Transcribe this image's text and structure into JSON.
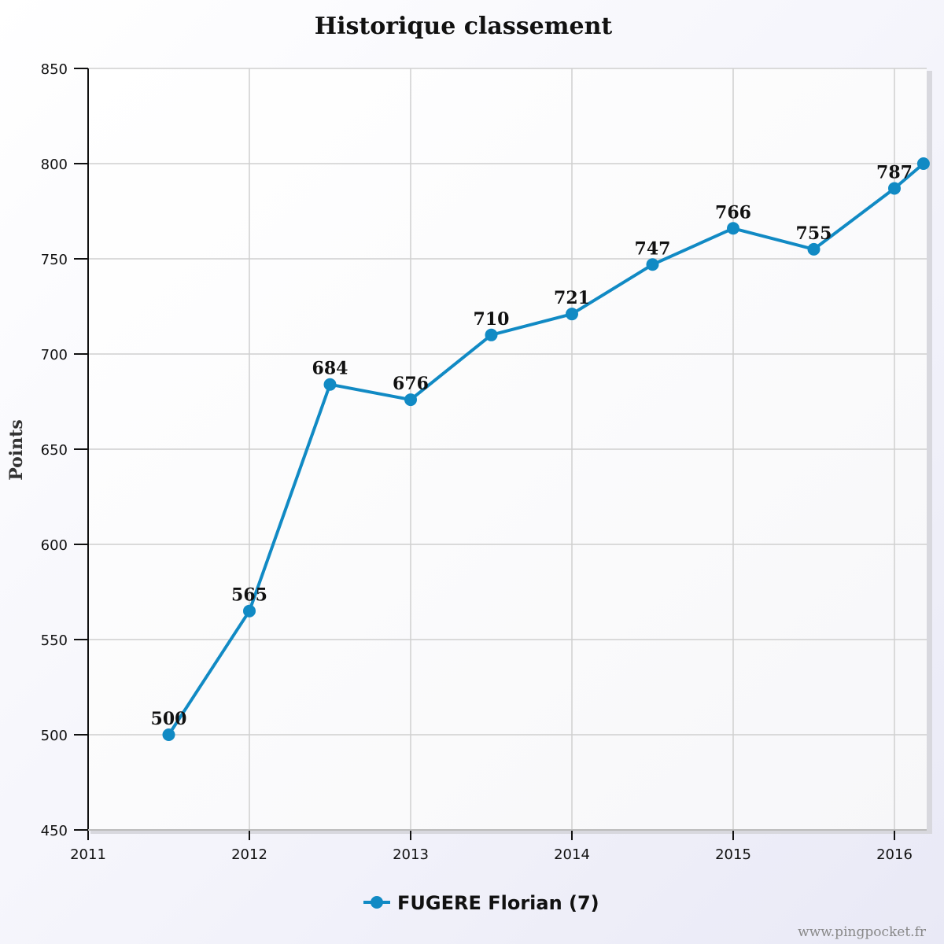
{
  "chart_data": {
    "type": "line",
    "title": "Historique classement",
    "ylabel": "Points",
    "xlabel": "",
    "ylim": [
      450,
      850
    ],
    "xlim": [
      2011,
      2016.2
    ],
    "yticks": [
      450,
      500,
      550,
      600,
      650,
      700,
      750,
      800,
      850
    ],
    "xticks": [
      2011,
      2012,
      2013,
      2014,
      2015,
      2016
    ],
    "grid": true,
    "legend_position": "bottom-center",
    "series": [
      {
        "name": "FUGERE Florian (7)",
        "color": "#118ac4",
        "x": [
          2011.5,
          2012.0,
          2012.5,
          2013.0,
          2013.5,
          2014.0,
          2014.5,
          2015.0,
          2015.5,
          2016.0,
          2016.18
        ],
        "y": [
          500,
          565,
          684,
          676,
          710,
          721,
          747,
          766,
          755,
          787,
          800
        ],
        "labels": [
          "500",
          "565",
          "684",
          "676",
          "710",
          "721",
          "747",
          "766",
          "755",
          "787",
          ""
        ]
      }
    ]
  },
  "credit": "www.pingpocket.fr"
}
